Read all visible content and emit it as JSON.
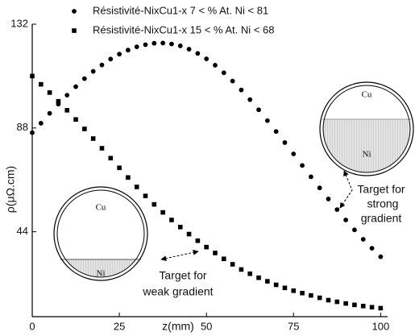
{
  "chart_data": {
    "type": "scatter",
    "xlabel": "z(mm)",
    "ylabel": "ρ(μΩ.cm)",
    "x": [
      0,
      2.5,
      5,
      7.5,
      10,
      12.5,
      15,
      17.5,
      20,
      22.5,
      25,
      27.5,
      30,
      32.5,
      35,
      37.5,
      40,
      42.5,
      45,
      47.5,
      50,
      52.5,
      55,
      57.5,
      60,
      62.5,
      65,
      67.5,
      70,
      72.5,
      75,
      77.5,
      80,
      82.5,
      85,
      87.5,
      90,
      92.5,
      95,
      97.5,
      100
    ],
    "series": [
      {
        "name": "Résistivité-NixCu1-x 7 < % At. Ni < 81",
        "marker": "circle",
        "color": "#000000",
        "values": [
          86.0,
          90.0,
          94.2,
          98.1,
          101.9,
          105.5,
          108.9,
          112.0,
          114.7,
          117.2,
          119.3,
          121.0,
          122.4,
          123.3,
          123.9,
          124.0,
          123.6,
          122.8,
          121.4,
          119.6,
          117.3,
          114.6,
          111.4,
          107.9,
          104.1,
          100.0,
          95.7,
          91.1,
          86.5,
          81.8,
          77.0,
          72.1,
          67.3,
          62.6,
          57.9,
          53.4,
          49.0,
          44.8,
          40.8,
          37.0,
          33.4
        ]
      },
      {
        "name": "Résistivité-NixCu1-x 15 < % At. Ni < 68",
        "marker": "square",
        "color": "#000000",
        "values": [
          110.0,
          106.5,
          103.0,
          99.3,
          95.5,
          91.6,
          87.6,
          83.5,
          79.4,
          75.2,
          71.1,
          67.0,
          63.0,
          59.2,
          55.6,
          52.2,
          49.0,
          46.0,
          43.0,
          40.2,
          37.5,
          35.0,
          32.5,
          30.2,
          28.0,
          26.2,
          24.5,
          23.0,
          21.5,
          20.2,
          19.0,
          18.0,
          17.0,
          16.0,
          15.0,
          14.3,
          13.6,
          13.0,
          12.5,
          12.0,
          11.6
        ]
      }
    ],
    "xlim": [
      0,
      102
    ],
    "ylim": [
      8,
      132
    ],
    "xticks": [
      0,
      25,
      50,
      75,
      100
    ],
    "yticks": [
      44,
      88,
      132
    ],
    "annotations": [
      "Cu",
      "Ni",
      "Cu",
      "Ni",
      "Target for",
      "weak gradient",
      "Target for",
      "strong",
      "gradient"
    ]
  }
}
